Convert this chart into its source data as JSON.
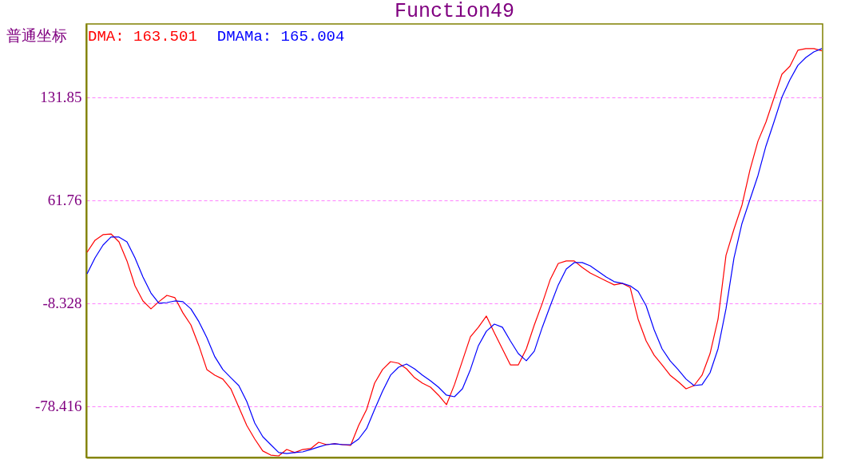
{
  "chart_data": {
    "type": "line",
    "title": "Function49",
    "legend_title": "普通坐标",
    "categories": [
      null,
      null,
      null,
      null,
      null,
      null,
      null,
      null,
      null,
      null,
      null,
      null,
      null,
      null,
      null,
      null,
      null,
      null,
      null,
      null,
      null,
      null,
      null,
      null,
      null,
      null,
      null,
      null,
      null,
      null,
      null,
      null,
      null,
      null,
      null,
      null,
      null,
      null,
      null,
      null,
      null,
      null,
      null,
      null,
      null,
      null,
      null,
      null,
      null,
      null,
      null,
      null,
      null,
      null,
      null,
      null,
      null,
      null,
      null,
      null,
      null,
      null,
      null,
      null,
      null,
      null,
      null,
      null,
      null,
      null,
      null,
      null,
      null,
      null,
      null,
      null,
      null,
      null,
      null,
      null,
      null,
      null,
      null,
      null,
      null,
      null,
      null,
      null,
      null,
      null,
      null,
      null,
      null
    ],
    "series": [
      {
        "name": "DMA: 163.501",
        "color": "#ff0000",
        "values": [
          26.4,
          34.6,
          38.4,
          38.9,
          33.5,
          20.5,
          3.6,
          -6.7,
          -12.1,
          -7.2,
          -2.9,
          -4.5,
          -14.8,
          -23.0,
          -37.1,
          -53.4,
          -57.2,
          -59.9,
          -66.5,
          -79.0,
          -91.5,
          -100.7,
          -108.8,
          -111.6,
          -112.1,
          -107.8,
          -109.9,
          -107.8,
          -107.2,
          -102.9,
          -104.5,
          -103.9,
          -104.5,
          -105.0,
          -91.5,
          -80.6,
          -62.7,
          -53.4,
          -48.0,
          -49.1,
          -52.9,
          -58.9,
          -62.7,
          -65.4,
          -70.8,
          -77.3,
          -63.7,
          -47.4,
          -31.1,
          -24.6,
          -17.0,
          -28.4,
          -39.3,
          -50.2,
          -50.2,
          -39.3,
          -23.0,
          -8.3,
          8.0,
          18.8,
          20.5,
          20.5,
          16.1,
          12.3,
          9.6,
          6.9,
          4.2,
          5.3,
          2.5,
          -19.2,
          -33.9,
          -43.6,
          -50.2,
          -57.2,
          -61.6,
          -66.5,
          -64.3,
          -57.2,
          -42.6,
          -19.2,
          24.3,
          42.2,
          58.5,
          82.4,
          102.0,
          115.0,
          131.3,
          147.6,
          153.0,
          163.9,
          165.0,
          165.0,
          163.5
        ]
      },
      {
        "name": "DMAMa: 165.004",
        "color": "#0000ff",
        "values": [
          11.8,
          22.6,
          31.3,
          36.8,
          36.8,
          33.5,
          22.6,
          9.6,
          -1.3,
          -8.3,
          -7.8,
          -6.7,
          -7.2,
          -12.1,
          -20.8,
          -31.7,
          -44.7,
          -53.4,
          -58.9,
          -64.3,
          -75.2,
          -89.8,
          -99.1,
          -104.5,
          -109.9,
          -110.5,
          -109.9,
          -109.4,
          -107.8,
          -106.1,
          -104.5,
          -103.9,
          -104.5,
          -104.5,
          -100.7,
          -93.6,
          -80.6,
          -68.1,
          -57.2,
          -51.8,
          -49.6,
          -52.9,
          -57.2,
          -61.0,
          -65.4,
          -70.8,
          -71.9,
          -66.5,
          -53.4,
          -37.1,
          -27.3,
          -22.5,
          -24.6,
          -33.9,
          -42.6,
          -47.4,
          -40.9,
          -24.6,
          -10.0,
          4.2,
          15.0,
          19.4,
          19.4,
          17.2,
          13.4,
          9.6,
          6.4,
          5.3,
          3.6,
          -0.2,
          -10.0,
          -26.3,
          -39.3,
          -47.4,
          -53.4,
          -59.9,
          -64.3,
          -63.7,
          -55.6,
          -39.3,
          -12.1,
          22.6,
          46.0,
          62.3,
          78.6,
          98.7,
          115.0,
          131.9,
          143.8,
          153.6,
          159.0,
          162.8,
          165.0
        ]
      }
    ],
    "ylim": [
      -113.2,
      181.8
    ],
    "yticks": [
      -78.416,
      -8.328,
      61.76,
      131.85
    ],
    "grid": true,
    "legend": "top left",
    "line_style": "solid"
  }
}
